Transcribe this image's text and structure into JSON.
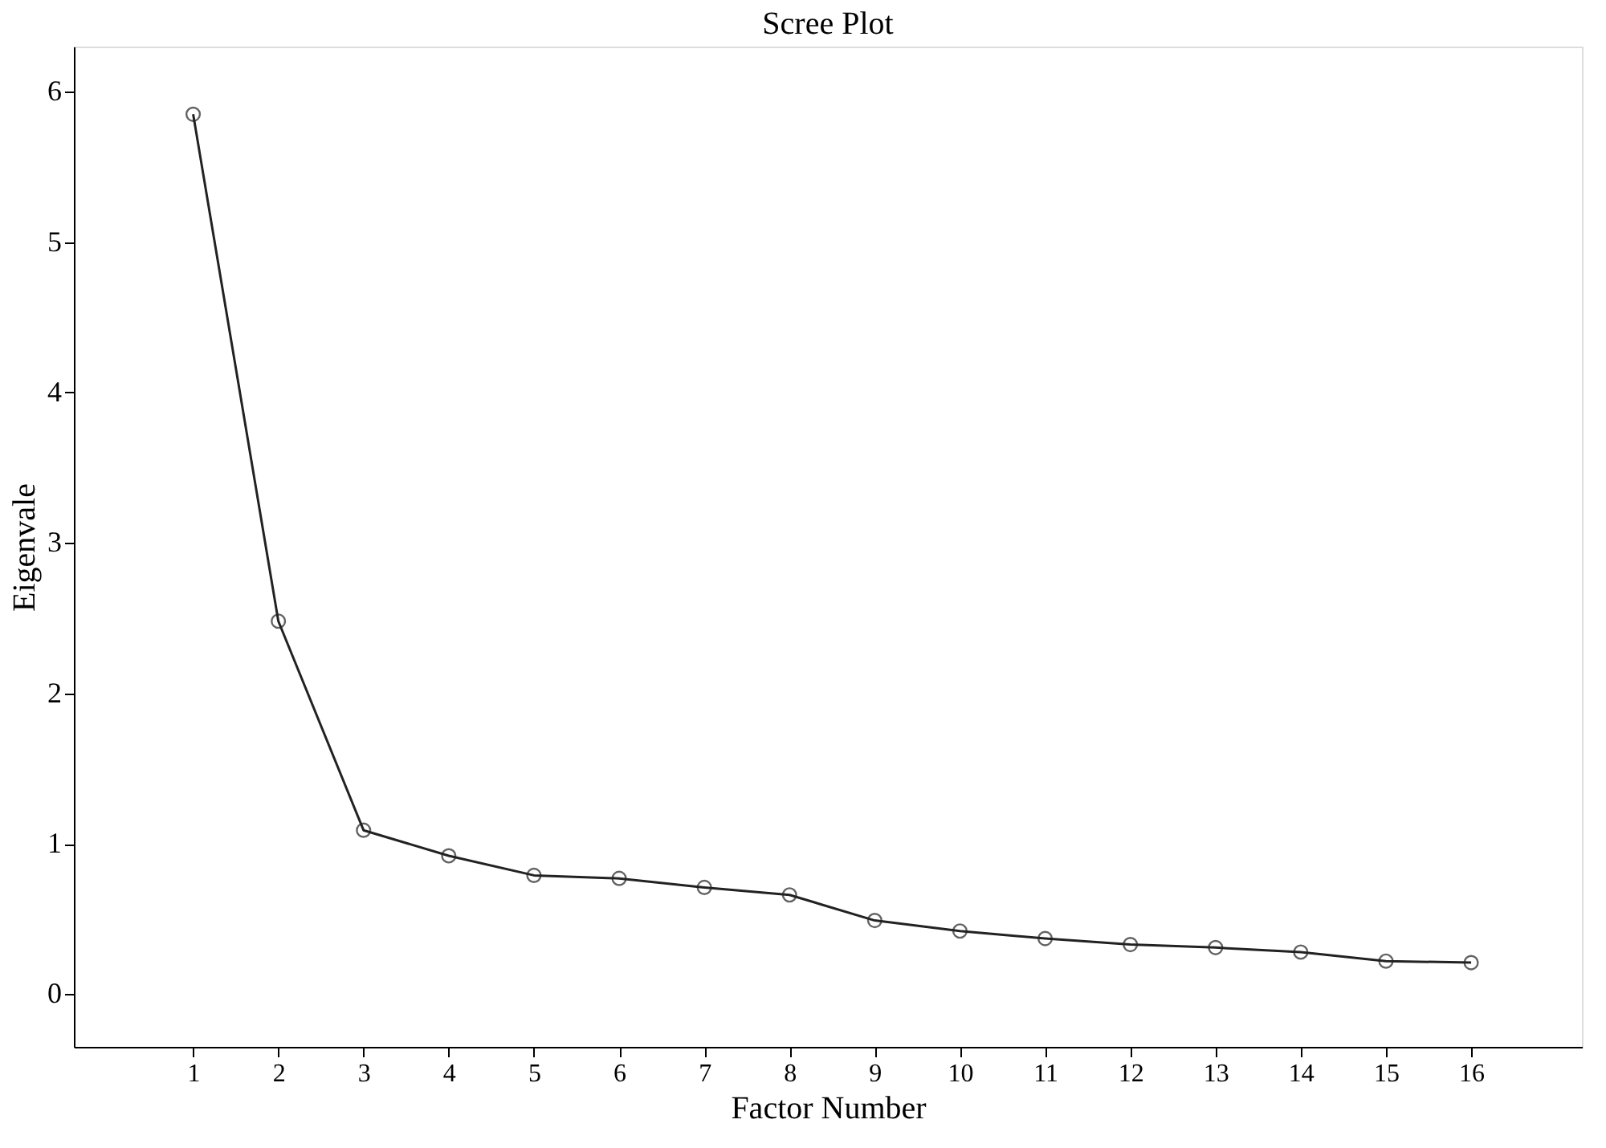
{
  "chart_data": {
    "type": "line",
    "title": "Scree Plot",
    "xlabel": "Factor Number",
    "ylabel": "Eigenvale",
    "x": [
      1,
      2,
      3,
      4,
      5,
      6,
      7,
      8,
      9,
      10,
      11,
      12,
      13,
      14,
      15,
      16
    ],
    "series": [
      {
        "color": "#222222",
        "values": [
          5.85,
          2.48,
          1.09,
          0.92,
          0.79,
          0.77,
          0.71,
          0.66,
          0.49,
          0.42,
          0.37,
          0.33,
          0.31,
          0.28,
          0.22,
          0.21
        ]
      }
    ],
    "xlim": [
      -0.4,
      17.3
    ],
    "xticks": [
      1,
      2,
      3,
      4,
      5,
      6,
      7,
      8,
      9,
      10,
      11,
      12,
      13,
      14,
      15,
      16
    ],
    "ylim": [
      -0.35,
      6.3
    ],
    "yticks": [
      0,
      1,
      2,
      3,
      4,
      5,
      6
    ],
    "grid": false,
    "marker": "circle",
    "line_style": "solid"
  }
}
